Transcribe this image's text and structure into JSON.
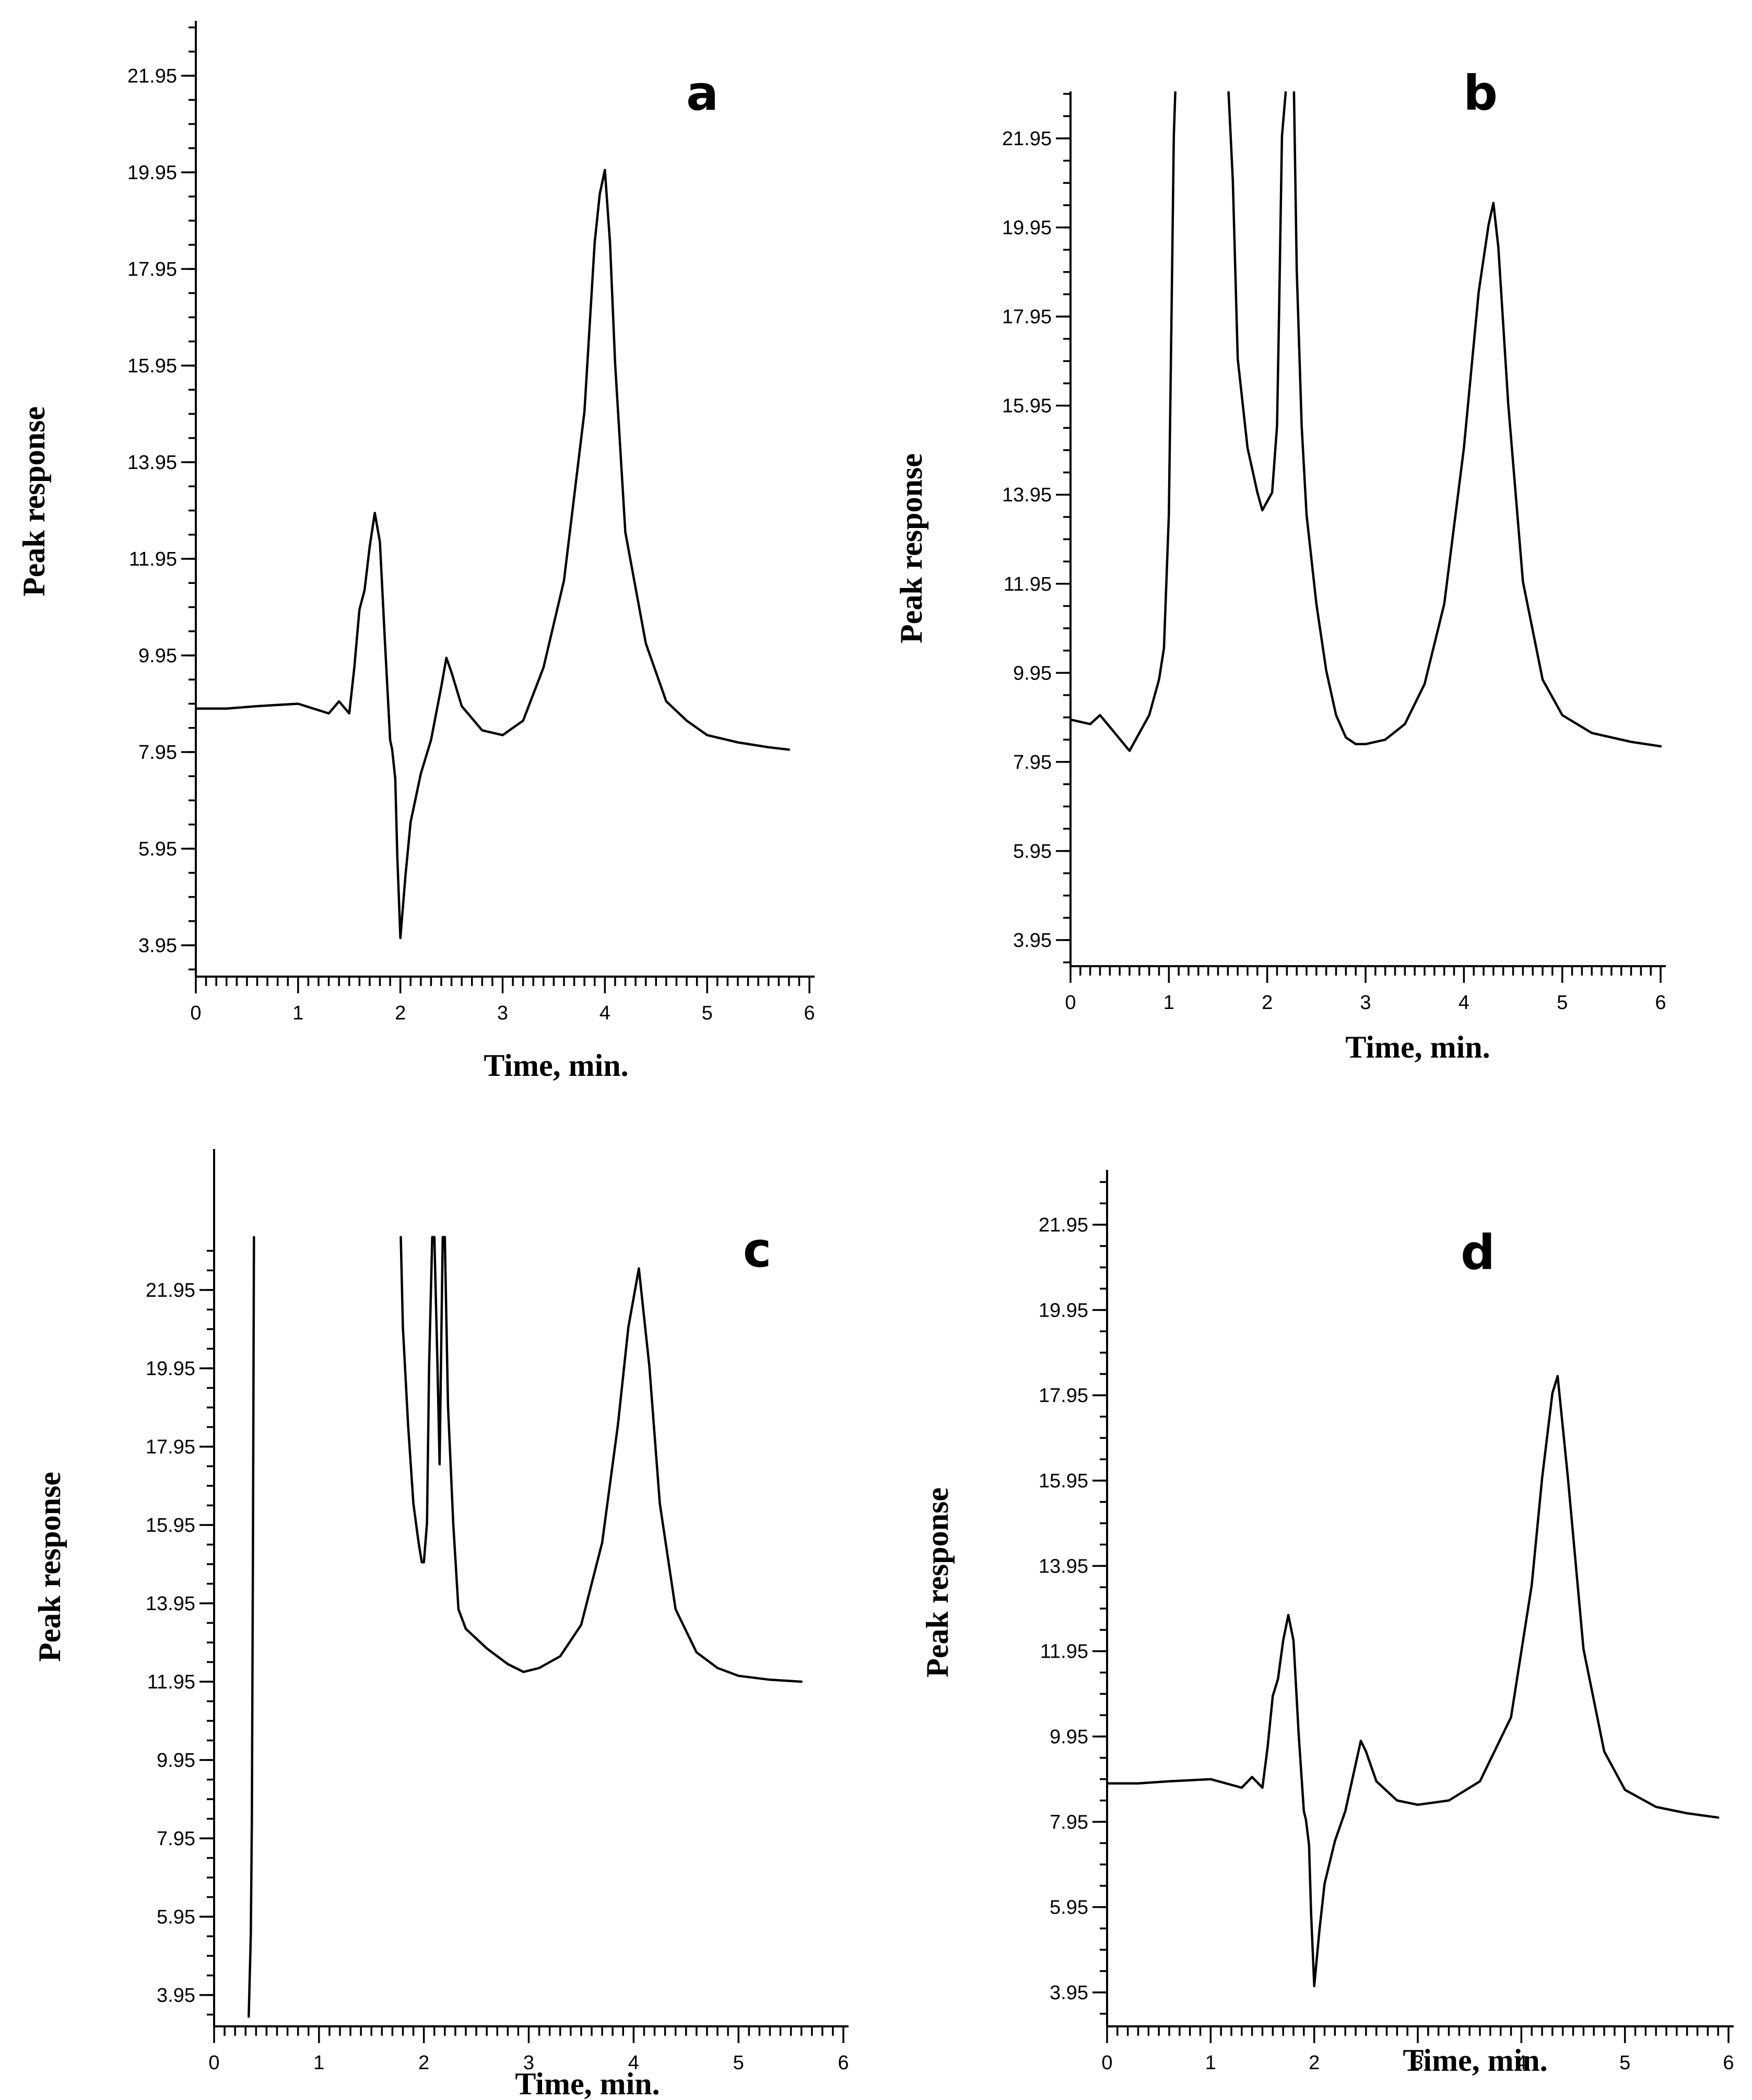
{
  "chart_data": [
    {
      "type": "line",
      "panel_label": "a",
      "xlabel": "Time, min.",
      "ylabel": "Peak response",
      "xlim": [
        0,
        6
      ],
      "ylim": [
        3.4,
        23.0
      ],
      "x_ticks": [
        "0",
        "1",
        "2",
        "3",
        "4",
        "5",
        "6"
      ],
      "y_ticks": [
        "3.95",
        "5.95",
        "7.95",
        "9.95",
        "11.95",
        "13.95",
        "15.95",
        "17.95",
        "19.95",
        "21.95"
      ],
      "series": [
        {
          "x": [
            0,
            0.3,
            0.6,
            1.0,
            1.3,
            1.4,
            1.5,
            1.55,
            1.6,
            1.65,
            1.7,
            1.75,
            1.8,
            1.85,
            1.9,
            1.92,
            1.95,
            1.97,
            2.0,
            2.05,
            2.1,
            2.2,
            2.3,
            2.4,
            2.45,
            2.5,
            2.6,
            2.8,
            3.0,
            3.2,
            3.4,
            3.6,
            3.8,
            3.9,
            3.95,
            4.0,
            4.05,
            4.1,
            4.2,
            4.4,
            4.6,
            4.8,
            5.0,
            5.3,
            5.6,
            5.8
          ],
          "y": [
            8.85,
            8.85,
            8.9,
            8.95,
            8.75,
            9.0,
            8.75,
            9.7,
            10.9,
            11.3,
            12.2,
            12.9,
            12.3,
            10.2,
            8.2,
            8.0,
            7.4,
            5.8,
            4.1,
            5.4,
            6.5,
            7.5,
            8.2,
            9.3,
            9.9,
            9.6,
            8.9,
            8.4,
            8.3,
            8.6,
            9.7,
            11.5,
            15.0,
            18.5,
            19.5,
            20.0,
            18.5,
            16.0,
            12.5,
            10.2,
            9.0,
            8.6,
            8.3,
            8.15,
            8.05,
            8.0
          ]
        }
      ]
    },
    {
      "type": "line",
      "panel_label": "b",
      "xlabel": "Time, min.",
      "ylabel": "Peak response",
      "xlim": [
        0,
        6
      ],
      "ylim": [
        3.4,
        23.0
      ],
      "x_ticks": [
        "0",
        "1",
        "2",
        "3",
        "4",
        "5",
        "6"
      ],
      "y_ticks": [
        "3.95",
        "5.95",
        "7.95",
        "9.95",
        "11.95",
        "13.95",
        "15.95",
        "17.95",
        "19.95",
        "21.95"
      ],
      "series": [
        {
          "x": [
            0,
            0.2,
            0.3,
            0.45,
            0.6,
            0.65,
            0.8,
            0.9,
            0.95,
            1.0,
            1.03,
            1.05,
            1.07,
            1.6,
            1.65,
            1.7,
            1.8,
            1.9,
            1.95,
            2.0,
            2.05,
            2.1,
            2.12,
            2.15,
            2.2,
            2.27,
            2.3,
            2.35,
            2.4,
            2.5,
            2.6,
            2.7,
            2.8,
            2.9,
            3.0,
            3.2,
            3.4,
            3.6,
            3.8,
            4.0,
            4.15,
            4.25,
            4.3,
            4.35,
            4.45,
            4.6,
            4.8,
            5.0,
            5.3,
            5.7,
            6.0
          ],
          "y": [
            8.9,
            8.8,
            9.0,
            8.6,
            8.2,
            8.4,
            9.0,
            9.8,
            10.5,
            13.5,
            18.5,
            22.0,
            23.3,
            23.3,
            21.0,
            17.0,
            15.0,
            14.0,
            13.6,
            13.8,
            14.0,
            15.5,
            18.0,
            22.0,
            23.3,
            23.3,
            19.0,
            15.5,
            13.5,
            11.5,
            10.0,
            9.0,
            8.5,
            8.35,
            8.35,
            8.45,
            8.8,
            9.7,
            11.5,
            15.0,
            18.5,
            20.0,
            20.5,
            19.5,
            16.0,
            12.0,
            9.8,
            9.0,
            8.6,
            8.4,
            8.3
          ]
        }
      ]
    },
    {
      "type": "line",
      "panel_label": "c",
      "xlabel": "Time, min.",
      "ylabel": "Peak response",
      "xlim": [
        0,
        6
      ],
      "ylim": [
        3.4,
        23.0
      ],
      "x_ticks": [
        "0",
        "1",
        "2",
        "3",
        "4",
        "5",
        "6"
      ],
      "y_ticks": [
        "3.95",
        "5.95",
        "7.95",
        "9.95",
        "11.95",
        "13.95",
        "15.95",
        "17.95",
        "19.95",
        "21.95"
      ],
      "series": [
        {
          "x": [
            0.33,
            0.35,
            0.36,
            0.37,
            0.38
          ],
          "y": [
            3.4,
            5.5,
            8.4,
            15.0,
            23.3
          ]
        },
        {
          "x": [
            1.78,
            1.8,
            1.85,
            1.9,
            1.95,
            1.98,
            2.0,
            2.03,
            2.05,
            2.08,
            2.1,
            2.13,
            2.15,
            2.18,
            2.2,
            2.23,
            2.28,
            2.33,
            2.4,
            2.6,
            2.8,
            2.95,
            3.1,
            3.3,
            3.5,
            3.7,
            3.85,
            3.95,
            4.05,
            4.15,
            4.25,
            4.4,
            4.6,
            4.8,
            5.0,
            5.3,
            5.6
          ],
          "y": [
            23.3,
            21.0,
            18.5,
            16.5,
            15.5,
            15.0,
            15.0,
            16.0,
            20.0,
            23.3,
            23.3,
            20.0,
            17.5,
            23.3,
            23.3,
            19.0,
            16.0,
            13.8,
            13.3,
            12.8,
            12.4,
            12.2,
            12.3,
            12.6,
            13.4,
            15.5,
            18.5,
            21.0,
            22.5,
            20.0,
            16.5,
            13.8,
            12.7,
            12.3,
            12.1,
            12.0,
            11.95
          ]
        }
      ]
    },
    {
      "type": "line",
      "panel_label": "d",
      "xlabel": "Time, min.",
      "ylabel": "Peak response",
      "xlim": [
        0,
        6
      ],
      "ylim": [
        3.4,
        23.0
      ],
      "x_ticks": [
        "0",
        "1",
        "2",
        "3",
        "4",
        "5",
        "6"
      ],
      "y_ticks": [
        "3.95",
        "5.95",
        "7.95",
        "9.95",
        "11.95",
        "13.95",
        "15.95",
        "17.95",
        "19.95",
        "21.95"
      ],
      "series": [
        {
          "x": [
            0,
            0.3,
            0.6,
            1.0,
            1.3,
            1.4,
            1.5,
            1.55,
            1.6,
            1.65,
            1.7,
            1.75,
            1.8,
            1.85,
            1.9,
            1.92,
            1.95,
            1.97,
            2.0,
            2.05,
            2.1,
            2.2,
            2.3,
            2.4,
            2.45,
            2.5,
            2.6,
            2.8,
            3.0,
            3.3,
            3.6,
            3.9,
            4.1,
            4.2,
            4.3,
            4.35,
            4.45,
            4.6,
            4.8,
            5.0,
            5.3,
            5.6,
            5.9
          ],
          "y": [
            8.85,
            8.85,
            8.9,
            8.95,
            8.75,
            9.0,
            8.75,
            9.7,
            10.9,
            11.3,
            12.2,
            12.8,
            12.2,
            10.0,
            8.2,
            8.0,
            7.4,
            5.8,
            4.1,
            5.4,
            6.5,
            7.5,
            8.2,
            9.3,
            9.85,
            9.6,
            8.9,
            8.45,
            8.35,
            8.45,
            8.9,
            10.4,
            13.5,
            16.0,
            18.0,
            18.4,
            16.0,
            12.0,
            9.6,
            8.7,
            8.3,
            8.15,
            8.05
          ]
        }
      ]
    }
  ]
}
